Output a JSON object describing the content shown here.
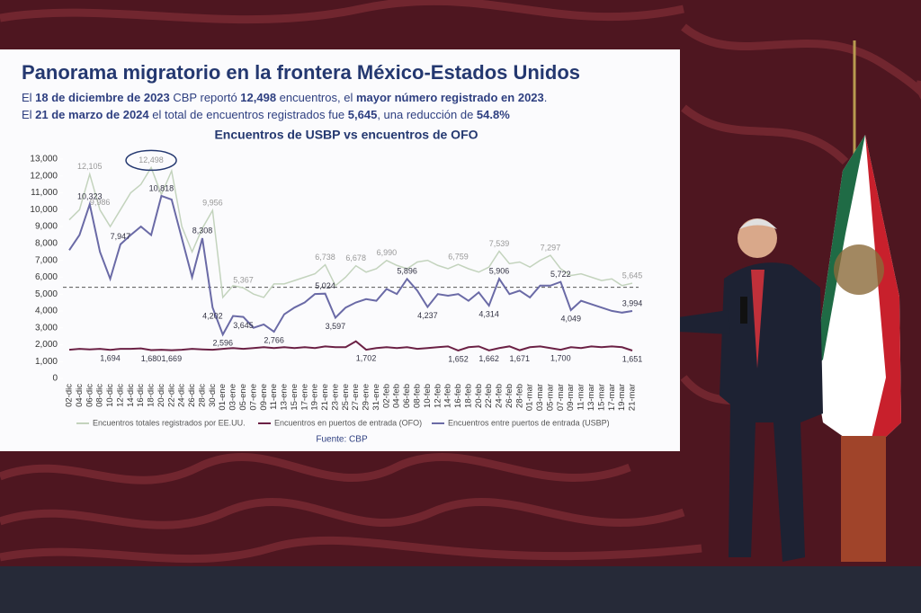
{
  "slide": {
    "title": "Panorama migratorio en la frontera México-Estados Unidos",
    "notes": [
      [
        "El ",
        "18 de diciembre de 2023",
        " CBP reportó ",
        "12,498",
        " encuentros, el ",
        "mayor número registrado en 2023",
        "."
      ],
      [
        "El ",
        "21 de marzo de 2024",
        " el total de encuentros registrados fue ",
        "5,645",
        ", una reducción de ",
        "54.8%"
      ]
    ]
  },
  "chart_data": {
    "type": "line",
    "title": "Encuentros de USBP vs encuentros de OFO",
    "source": "Fuente: CBP",
    "categories": [
      "02-dic",
      "04-dic",
      "06-dic",
      "08-dic",
      "10-dic",
      "12-dic",
      "14-dic",
      "16-dic",
      "18-dic",
      "20-dic",
      "22-dic",
      "24-dic",
      "26-dic",
      "28-dic",
      "30-dic",
      "01-ene",
      "03-ene",
      "05-ene",
      "07-ene",
      "09-ene",
      "11-ene",
      "13-ene",
      "15-ene",
      "17-ene",
      "19-ene",
      "21-ene",
      "23-ene",
      "25-ene",
      "27-ene",
      "29-ene",
      "31-ene",
      "02-feb",
      "04-feb",
      "06-feb",
      "08-feb",
      "10-feb",
      "12-feb",
      "14-feb",
      "16-feb",
      "18-feb",
      "20-feb",
      "22-feb",
      "24-feb",
      "26-feb",
      "28-feb",
      "01-mar",
      "03-mar",
      "05-mar",
      "07-mar",
      "09-mar",
      "11-mar",
      "13-mar",
      "15-mar",
      "17-mar",
      "19-mar",
      "21-mar"
    ],
    "series": [
      {
        "name": "Encuentros totales registrados por EE.UU.",
        "color": "#c3d3bd",
        "values": [
          9400,
          10000,
          12105,
          9986,
          9000,
          10000,
          11000,
          11500,
          12498,
          10900,
          12300,
          9000,
          7500,
          8900,
          9956,
          4800,
          5500,
          5367,
          5000,
          4800,
          5600,
          5600,
          5800,
          6000,
          6200,
          6738,
          5500,
          6000,
          6678,
          6300,
          6500,
          6990,
          6700,
          6500,
          6900,
          7000,
          6700,
          6500,
          6759,
          6500,
          6300,
          6600,
          7539,
          6800,
          6900,
          6600,
          7000,
          7297,
          6500,
          6100,
          6200,
          6000,
          5800,
          5900,
          5500,
          5645
        ],
        "value_labels": [
          null,
          null,
          "12,105",
          "9,986",
          null,
          null,
          null,
          null,
          "12,498",
          null,
          null,
          null,
          null,
          null,
          "9,956",
          null,
          null,
          "5,367",
          null,
          null,
          null,
          null,
          null,
          null,
          null,
          "6,738",
          null,
          null,
          "6,678",
          null,
          null,
          "6,990",
          null,
          null,
          null,
          null,
          null,
          null,
          "6,759",
          null,
          null,
          null,
          "7,539",
          null,
          null,
          null,
          null,
          "7,297",
          null,
          null,
          null,
          null,
          null,
          null,
          null,
          "5,645"
        ]
      },
      {
        "name": "Encuentros en puertos de entrada (OFO)",
        "color": "#6b2145",
        "values": [
          1700,
          1750,
          1720,
          1750,
          1694,
          1750,
          1750,
          1780,
          1680,
          1700,
          1669,
          1700,
          1750,
          1720,
          1700,
          1750,
          1800,
          1750,
          1800,
          1850,
          1800,
          1850,
          1800,
          1850,
          1800,
          1900,
          1850,
          1850,
          2200,
          1702,
          1800,
          1850,
          1800,
          1850,
          1750,
          1800,
          1850,
          1900,
          1652,
          1850,
          1900,
          1662,
          1800,
          1900,
          1671,
          1850,
          1900,
          1800,
          1700,
          1850,
          1800,
          1900,
          1850,
          1900,
          1850,
          1651
        ],
        "value_labels": [
          null,
          null,
          null,
          null,
          "1,694",
          null,
          null,
          null,
          "1,680",
          null,
          "1,669",
          null,
          null,
          null,
          null,
          null,
          null,
          null,
          null,
          null,
          null,
          null,
          null,
          null,
          null,
          null,
          null,
          null,
          null,
          "1,702",
          null,
          null,
          null,
          null,
          null,
          null,
          null,
          null,
          "1,652",
          null,
          null,
          "1,662",
          null,
          null,
          "1,671",
          null,
          null,
          null,
          "1,700",
          null,
          null,
          null,
          null,
          null,
          null,
          "1,651"
        ]
      },
      {
        "name": "Encuentros entre puertos de entrada (USBP)",
        "color": "#6a6aa6",
        "values": [
          7600,
          8500,
          10323,
          7500,
          5900,
          7947,
          8500,
          9000,
          8500,
          10818,
          10600,
          8300,
          6000,
          8308,
          4202,
          2596,
          3700,
          3645,
          3000,
          3200,
          2766,
          3800,
          4200,
          4500,
          5000,
          5024,
          3597,
          4200,
          4500,
          4700,
          4600,
          5300,
          5000,
          5896,
          5200,
          4237,
          5000,
          4900,
          5000,
          4600,
          5100,
          4314,
          5906,
          5000,
          5200,
          4800,
          5500,
          5500,
          5722,
          4049,
          4600,
          4400,
          4200,
          4000,
          3900,
          3994
        ],
        "value_labels": [
          null,
          null,
          "10,323",
          null,
          null,
          "7,947",
          null,
          null,
          null,
          "10,818",
          null,
          null,
          null,
          "8,308",
          "4,202",
          "2,596",
          null,
          "3,645",
          null,
          null,
          "2,766",
          null,
          null,
          null,
          null,
          "5,024",
          "3,597",
          null,
          null,
          null,
          null,
          null,
          null,
          "5,896",
          null,
          "4,237",
          null,
          null,
          null,
          null,
          null,
          "4,314",
          "5,906",
          null,
          null,
          null,
          null,
          null,
          "5,722",
          "4,049",
          null,
          null,
          null,
          null,
          null,
          "3,994"
        ]
      }
    ],
    "reference_line": 5400,
    "ylim": [
      0,
      13000
    ],
    "yticks": [
      0,
      {
        "value": 1000,
        "label": "1,000"
      },
      {
        "value": 2000,
        "label": "2,000"
      },
      {
        "value": 3000,
        "label": "3,000"
      },
      {
        "value": 4000,
        "label": "4,000"
      },
      {
        "value": 5000,
        "label": "5,000"
      },
      {
        "value": 6000,
        "label": "6,000"
      },
      {
        "value": 7000,
        "label": "7,000"
      },
      {
        "value": 8000,
        "label": "8,000"
      },
      {
        "value": 9000,
        "label": "9,000"
      },
      {
        "value": 10000,
        "label": "10,000"
      },
      {
        "value": 11000,
        "label": "11,000"
      },
      {
        "value": 12000,
        "label": "12,000"
      },
      {
        "value": 13000,
        "label": "13,000"
      }
    ]
  }
}
